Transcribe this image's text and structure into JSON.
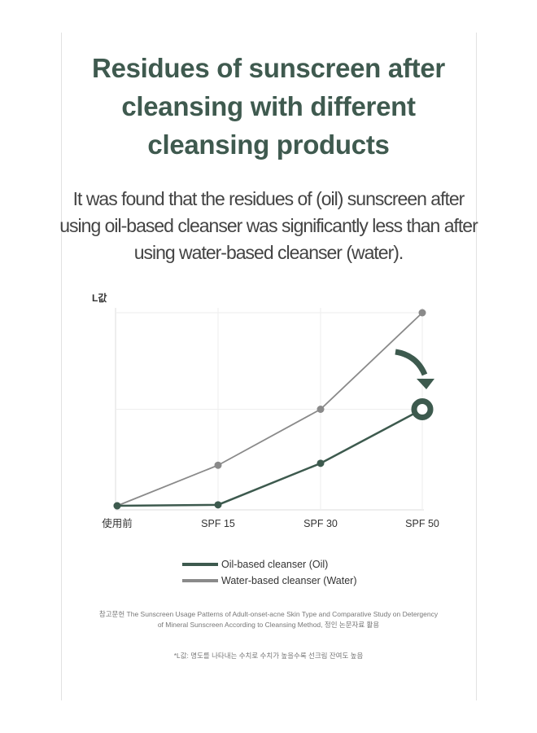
{
  "title": "Residues of sunscreen after cleansing with different cleansing products",
  "subtitle": "It was found that the residues of (oil) sunscreen after using oil-based cleanser was significantly less than after using water-based cleanser (water).",
  "chart_data": {
    "type": "line",
    "ylabel": "L값",
    "categories": [
      "使用前",
      "SPF 15",
      "SPF 30",
      "SPF 50"
    ],
    "ylim": [
      0,
      100
    ],
    "grid": true,
    "legend_position": "bottom",
    "series": [
      {
        "name": "Oil-based cleanser (Oil)",
        "values": [
          0,
          0.5,
          22,
          50
        ],
        "color": "#3d5a4e"
      },
      {
        "name": "Water-based cleanser (Water)",
        "values": [
          0,
          21,
          50,
          100
        ],
        "color": "#8a8a8a"
      }
    ],
    "annotation": "arrow-down-to-oil-spf50"
  },
  "references": "참고문헌 The Sunscreen Usage Patterns of Adult-onset-acne Skin Type and Comparative Study on Detergency of Mineral Sunscreen According to Cleansing Method, 정인 논문자료 활용",
  "note": "*L값: 명도를 나타내는 수치로 수치가 높을수록 선크림 잔여도 높음"
}
